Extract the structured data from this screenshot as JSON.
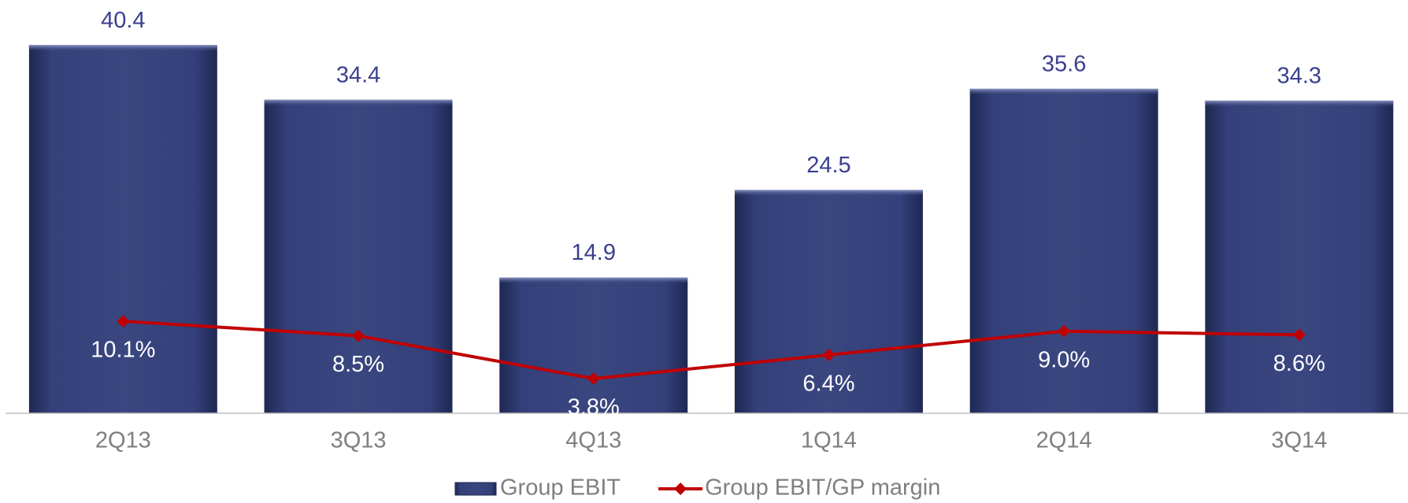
{
  "chart_data": {
    "type": "bar_line",
    "categories": [
      "2Q13",
      "3Q13",
      "4Q13",
      "1Q14",
      "2Q14",
      "3Q14"
    ],
    "series": [
      {
        "name": "Group EBIT",
        "type": "bar",
        "color": "#2f3b73",
        "values": [
          40.4,
          34.4,
          14.9,
          24.5,
          35.6,
          34.3
        ]
      },
      {
        "name": "Group EBIT/GP margin",
        "type": "line",
        "axis": "y2",
        "color": "#c00000",
        "values": [
          10.1,
          8.5,
          3.8,
          6.4,
          9.0,
          8.6
        ],
        "value_labels": [
          "10.1%",
          "8.5%",
          "3.8%",
          "6.4%",
          "9.0%",
          "8.6%"
        ]
      }
    ],
    "ylim": [
      0,
      45
    ],
    "y2lim": [
      0,
      45
    ],
    "legend": "bottom"
  }
}
